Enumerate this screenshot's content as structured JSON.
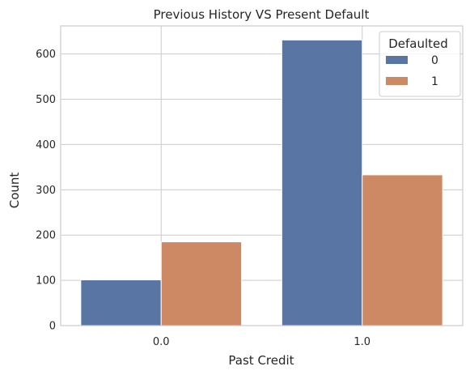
{
  "chart_data": {
    "type": "bar",
    "title": "Previous History VS Present Default",
    "xlabel": "Past Credit",
    "ylabel": "Count",
    "categories": [
      "0.0",
      "1.0"
    ],
    "series": [
      {
        "name": "0",
        "values": [
          101,
          631
        ],
        "color": "#5875a4"
      },
      {
        "name": "1",
        "values": [
          185,
          333
        ],
        "color": "#cc8963"
      }
    ],
    "ylim": [
      0,
      662
    ],
    "yticks": [
      "0",
      "100",
      "200",
      "300",
      "400",
      "500",
      "600"
    ],
    "grid": true,
    "legend": {
      "title": "Defaulted",
      "placement": "top-right"
    }
  }
}
